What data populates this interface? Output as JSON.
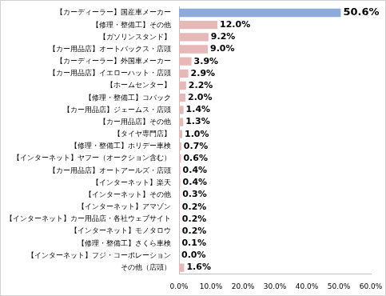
{
  "chart_data": {
    "type": "bar",
    "orientation": "horizontal",
    "categories": [
      "【カーディーラー】国産車メーカー",
      "【修理・整備工】その他",
      "【ガソリンスタンド】",
      "【カー用品店】オートバックス・店頭",
      "【カーディーラー】外国車メーカー",
      "【カー用品店】イエローハット・店頭",
      "【ホームセンター】",
      "【修理・整備工】コバック",
      "【カー用品店】ジェームス・店頭",
      "【カー用品店】その他",
      "【タイヤ専門店】",
      "【修理・整備工】ホリデー車検",
      "【インターネット】ヤフー（オークション含む）",
      "【カー用品店】オートアールズ・店頭",
      "【インターネット】楽天",
      "【インターネット】その他",
      "【インターネット】アマゾン",
      "【インターネット】カー用品店・各社ウェブサイト",
      "【インターネット】モノタロウ",
      "【修理・整備工】さくら車検",
      "【インターネット】フジ・コーポレーション",
      "その他（店頭）"
    ],
    "values": [
      50.6,
      12.0,
      9.2,
      9.0,
      3.9,
      2.9,
      2.2,
      2.0,
      1.4,
      1.3,
      1.0,
      0.7,
      0.6,
      0.4,
      0.4,
      0.3,
      0.2,
      0.2,
      0.2,
      0.1,
      0.0,
      1.6
    ],
    "value_labels": [
      "50.6%",
      "12.0%",
      "9.2%",
      "9.0%",
      "3.9%",
      "2.9%",
      "2.2%",
      "2.0%",
      "1.4%",
      "1.3%",
      "1.0%",
      "0.7%",
      "0.6%",
      "0.4%",
      "0.4%",
      "0.3%",
      "0.2%",
      "0.2%",
      "0.2%",
      "0.1%",
      "0.0%",
      "1.6%"
    ],
    "colors": [
      "#8eaadb",
      "#e6b8b7",
      "#e6b8b7",
      "#e6b8b7",
      "#e6b8b7",
      "#e6b8b7",
      "#e6b8b7",
      "#e6b8b7",
      "#e6b8b7",
      "#e6b8b7",
      "#e6b8b7",
      "#e6b8b7",
      "#e6b8b7",
      "#e6b8b7",
      "#e6b8b7",
      "#e6b8b7",
      "#e6b8b7",
      "#e6b8b7",
      "#e6b8b7",
      "#e6b8b7",
      "#e6b8b7",
      "#e6b8b7"
    ],
    "data_labels": true,
    "xlim": [
      0,
      60
    ],
    "xticks": [
      {
        "value": 0,
        "label": "0.0%"
      },
      {
        "value": 10,
        "label": "10.0%"
      },
      {
        "value": 20,
        "label": "20.0%"
      },
      {
        "value": 30,
        "label": "30.0%"
      },
      {
        "value": 40,
        "label": "40.0%"
      },
      {
        "value": 50,
        "label": "50.0%"
      },
      {
        "value": 60,
        "label": "60.0%"
      }
    ],
    "grid": false
  }
}
